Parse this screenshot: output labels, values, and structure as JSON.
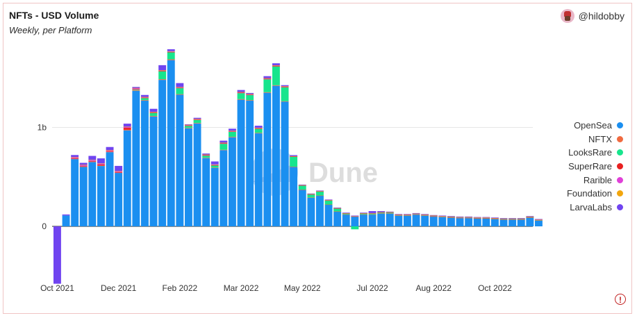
{
  "header": {
    "title": "NFTs - USD Volume",
    "subtitle": "Weekly, per Platform",
    "author": "@hildobby"
  },
  "watermark": "Dune",
  "chart_data": {
    "type": "bar",
    "stacked": true,
    "unit": "USD",
    "y_ticks": [
      {
        "value": 0,
        "label": "0"
      },
      {
        "value": 1000000000,
        "label": "1b"
      }
    ],
    "ylim": [
      -600000000,
      1800000000
    ],
    "x_tick_labels": [
      "Oct 2021",
      "Dec 2021",
      "Feb 2022",
      "Mar 2022",
      "May 2022",
      "Jul 2022",
      "Aug 2022",
      "Oct 2022"
    ],
    "x_tick_week_index": [
      0,
      7,
      14,
      21,
      28,
      36,
      43,
      50
    ],
    "legend_position": "right",
    "series": [
      {
        "name": "OpenSea",
        "color": "#1b8ff0",
        "values": [
          0,
          0.11,
          0.68,
          0.6,
          0.65,
          0.61,
          0.75,
          0.54,
          0.97,
          1.37,
          1.27,
          1.11,
          1.48,
          1.68,
          1.33,
          0.99,
          1.04,
          0.69,
          0.59,
          0.77,
          0.9,
          1.28,
          1.27,
          0.94,
          1.35,
          1.42,
          1.26,
          0.6,
          0.37,
          0.29,
          0.31,
          0.22,
          0.15,
          0.12,
          0.1,
          0.12,
          0.12,
          0.13,
          0.13,
          0.11,
          0.11,
          0.12,
          0.11,
          0.1,
          0.095,
          0.09,
          0.085,
          0.085,
          0.08,
          0.08,
          0.075,
          0.07,
          0.07,
          0.07,
          0.09,
          0.06
        ]
      },
      {
        "name": "NFTX",
        "color": "#f06a40",
        "values": [
          0,
          0,
          0.004,
          0.005,
          0.005,
          0.005,
          0.005,
          0.004,
          0.006,
          0.007,
          0.006,
          0.006,
          0.007,
          0.008,
          0.006,
          0.005,
          0.005,
          0.004,
          0.004,
          0.004,
          0.005,
          0.006,
          0.006,
          0.005,
          0.006,
          0.006,
          0.005,
          0.003,
          0.002,
          0.002,
          0.002,
          0.001,
          0.001,
          0.001,
          0.001,
          0.001,
          0.001,
          0.001,
          0.001,
          0.001,
          0.001,
          0.001,
          0.001,
          0.001,
          0.001,
          0.001,
          0.001,
          0.001,
          0.001,
          0.001,
          0.001,
          0.001,
          0.001,
          0.001,
          0.001,
          0.001
        ]
      },
      {
        "name": "LooksRare",
        "color": "#17e58d",
        "values": [
          0,
          0,
          0,
          0,
          0,
          0,
          0,
          0,
          0,
          0.005,
          0.02,
          0.03,
          0.08,
          0.07,
          0.06,
          0.02,
          0.03,
          0.02,
          0.02,
          0.06,
          0.05,
          0.06,
          0.05,
          0.04,
          0.13,
          0.19,
          0.14,
          0.1,
          0.04,
          0.03,
          0.04,
          0.04,
          0.03,
          0.01,
          -0.03,
          0.01,
          0.01,
          0.01,
          0.01,
          0.005,
          0.005,
          0.005,
          0.005,
          0.005,
          0.005,
          0.005,
          0.005,
          0.005,
          0.005,
          0.005,
          0.005,
          0.005,
          0.005,
          0.005,
          0.005,
          0.005
        ]
      },
      {
        "name": "SuperRare",
        "color": "#e82020",
        "values": [
          0,
          0,
          0.005,
          0.005,
          0.005,
          0.01,
          0.005,
          0.005,
          0.02,
          0.005,
          0.005,
          0.005,
          0.005,
          0.005,
          0.005,
          0.005,
          0.005,
          0.005,
          0.005,
          0.005,
          0.005,
          0.005,
          0.005,
          0.005,
          0.005,
          0.005,
          0.005,
          0.003,
          0.002,
          0.002,
          0.002,
          0.002,
          0.001,
          0.001,
          0.001,
          0.001,
          0.001,
          0.001,
          0.001,
          0.001,
          0.001,
          0.001,
          0.001,
          0.001,
          0.001,
          0.001,
          0.001,
          0.001,
          0.001,
          0.001,
          0.001,
          0.001,
          0.001,
          0.001,
          0.001,
          0.001
        ]
      },
      {
        "name": "Rarible",
        "color": "#e040d8",
        "values": [
          0,
          0,
          0.01,
          0.01,
          0.01,
          0.01,
          0.01,
          0.01,
          0.01,
          0.01,
          0.005,
          0.005,
          0.005,
          0.005,
          0.005,
          0.005,
          0.005,
          0.005,
          0.005,
          0.005,
          0.005,
          0.005,
          0.005,
          0.005,
          0.005,
          0.005,
          0.005,
          0.003,
          0.002,
          0.002,
          0.002,
          0.002,
          0.002,
          0.001,
          0.001,
          0.001,
          0.001,
          0.001,
          0.001,
          0.001,
          0.001,
          0.001,
          0.001,
          0.001,
          0.001,
          0.001,
          0.001,
          0.001,
          0.001,
          0.001,
          0.001,
          0.001,
          0.001,
          0.001,
          0.001,
          0.001
        ]
      },
      {
        "name": "Foundation",
        "color": "#f2a60d",
        "values": [
          0,
          0,
          0.002,
          0.002,
          0.002,
          0.002,
          0.002,
          0.002,
          0.002,
          0.002,
          0.002,
          0.002,
          0.002,
          0.002,
          0.002,
          0.002,
          0.002,
          0.002,
          0.002,
          0.002,
          0.002,
          0.002,
          0.002,
          0.002,
          0.002,
          0.002,
          0.002,
          0.001,
          0.001,
          0.001,
          0.001,
          0.001,
          0.001,
          0.001,
          0.001,
          0.001,
          0.001,
          0.001,
          0.001,
          0.001,
          0.001,
          0.001,
          0.001,
          0.001,
          0.001,
          0.001,
          0.001,
          0.001,
          0.001,
          0.001,
          0.001,
          0.001,
          0.001,
          0.001,
          0.001,
          0.001
        ]
      },
      {
        "name": "LarvaLabs",
        "color": "#7044f0",
        "values": [
          -0.58,
          0.01,
          0.02,
          0.02,
          0.04,
          0.05,
          0.03,
          0.05,
          0.03,
          0.01,
          0.02,
          0.03,
          0.05,
          0.02,
          0.04,
          0.005,
          0.01,
          0.01,
          0.03,
          0.02,
          0.02,
          0.02,
          0.01,
          0.02,
          0.02,
          0.02,
          0.01,
          0.01,
          0.005,
          0.005,
          0.005,
          0.005,
          0.005,
          0.005,
          0.005,
          0.005,
          0.02,
          0.01,
          0.005,
          0.005,
          0.005,
          0.005,
          0.005,
          0.005,
          0.005,
          0.005,
          0.005,
          0.005,
          0.005,
          0.005,
          0.005,
          0.005,
          0.005,
          0.005,
          0.005,
          0.005
        ]
      }
    ]
  }
}
